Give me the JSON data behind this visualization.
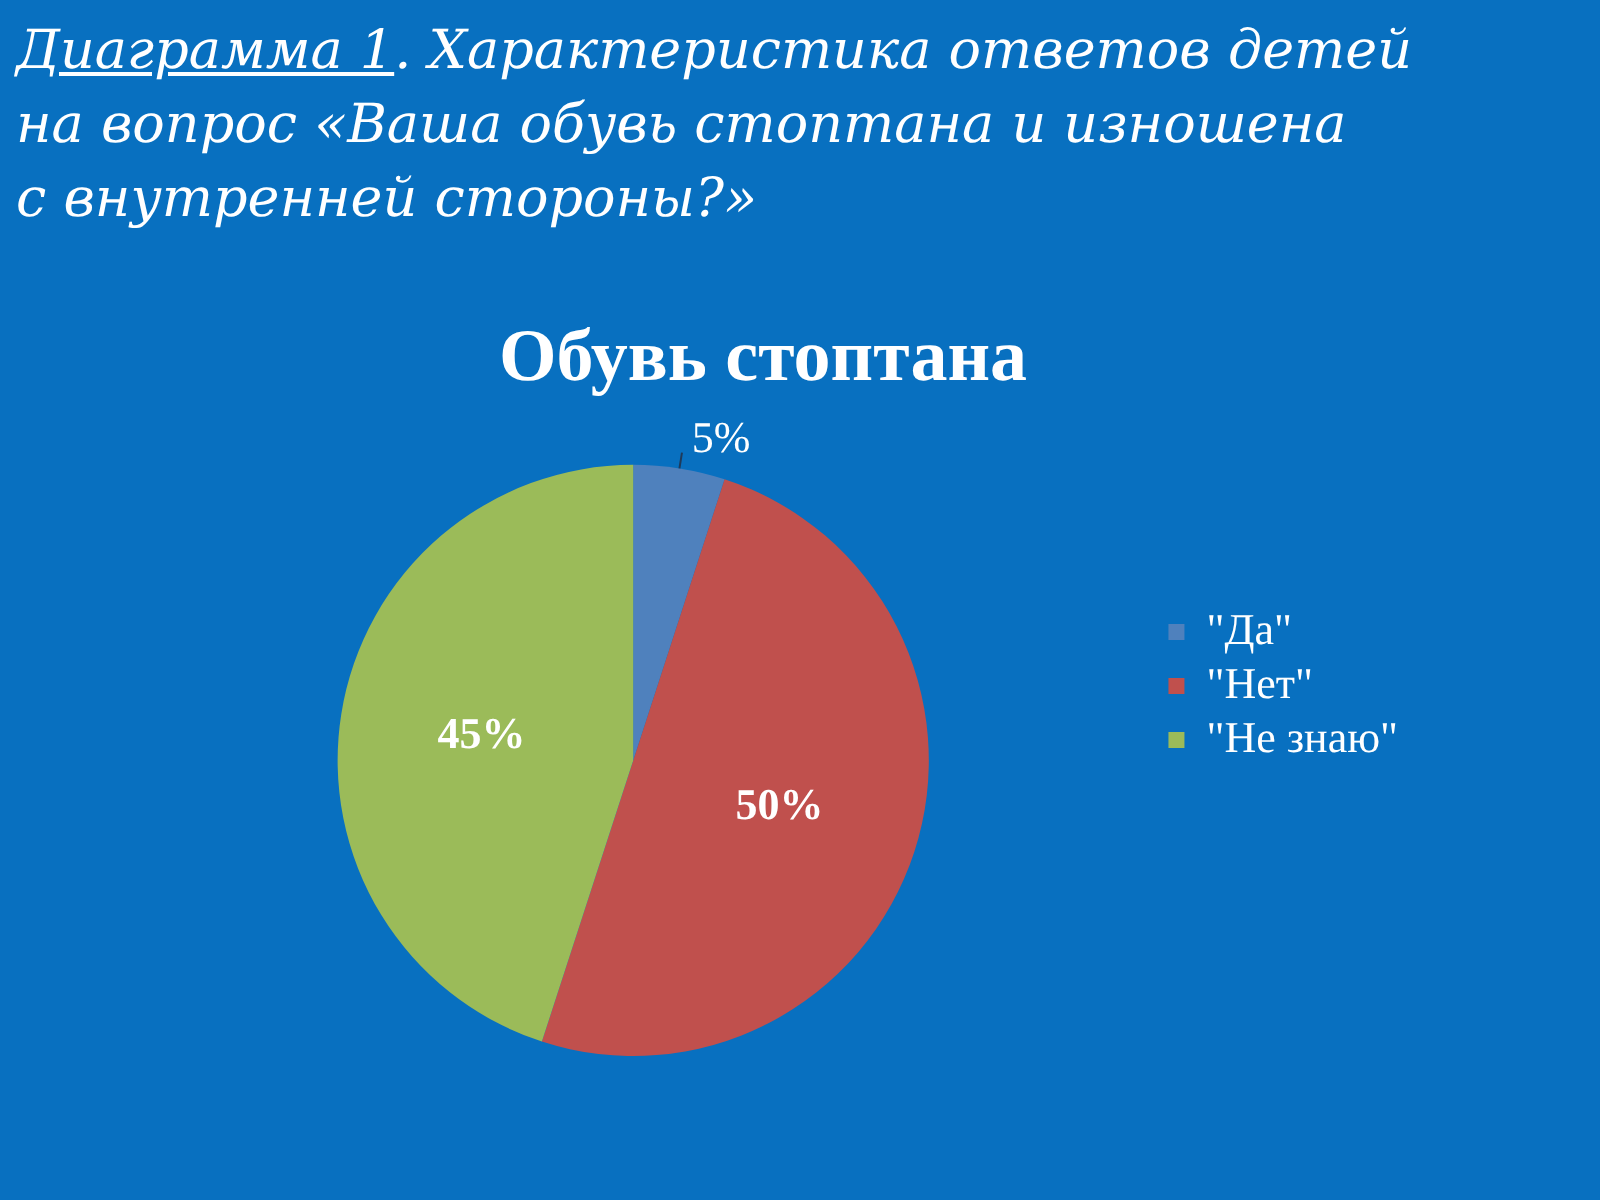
{
  "chart_data": {
    "type": "pie",
    "title": "Диаграмма 1. Характеристика ответов детей\nна вопрос «Ваша обувь стоптана  и изношена\nс внутренней стороны?»",
    "subtitle": "Обувь стоптана",
    "categories": [
      "\"Да\"",
      "\"Нет\"",
      "\"Не знаю\""
    ],
    "values": [
      5,
      50,
      45
    ],
    "colors": [
      "#4f81bd",
      "#c0504d",
      "#9bbb59"
    ],
    "value_labels": [
      "5%",
      "50%",
      "45%"
    ],
    "legend": "right"
  }
}
